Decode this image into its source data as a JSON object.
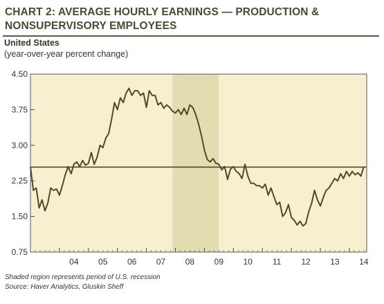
{
  "title_line1": "CHART 2: AVERAGE HOURLY EARNINGS — PRODUCTION &",
  "title_line2": "NONSUPERVISORY EMPLOYEES",
  "subtitle": "United States",
  "units": "(year-over-year percent change)",
  "footnotes": {
    "recession_note": "Shaded region represents period of U.S. recession",
    "source": "Source: Haver Analytics, Gluskin Sheff"
  },
  "colors": {
    "plot_background": "#f7efcf",
    "recession_shade": "#e3dcb0",
    "series_line": "#4b4b2b",
    "reference_line": "#4b4b2b"
  },
  "chart_data": {
    "type": "line",
    "ylim": [
      0.75,
      4.5
    ],
    "yticks": [
      "4.50",
      "3.75",
      "3.00",
      "2.25",
      "1.50",
      "0.75"
    ],
    "yticks_values": [
      4.5,
      3.75,
      3.0,
      2.25,
      1.5,
      0.75
    ],
    "xlim": [
      2003.0,
      2014.6
    ],
    "xtick_labels": [
      "04",
      "05",
      "06",
      "07",
      "08",
      "09",
      "10",
      "11",
      "12",
      "13",
      "14"
    ],
    "xtick_centers": [
      2004.5,
      2005.5,
      2006.5,
      2007.5,
      2008.5,
      2009.5,
      2010.5,
      2011.5,
      2012.5,
      2013.5,
      2014.5
    ],
    "reference_line": 2.54,
    "recession": [
      2007.9,
      2009.5
    ],
    "series": [
      {
        "x": [
          2003.0,
          2003.1,
          2003.2,
          2003.3,
          2003.4,
          2003.5,
          2003.6,
          2003.7,
          2003.8,
          2003.9,
          2004.0,
          2004.1,
          2004.2,
          2004.3,
          2004.4,
          2004.5,
          2004.6,
          2004.7,
          2004.8,
          2004.9,
          2005.0,
          2005.1,
          2005.2,
          2005.3,
          2005.4,
          2005.5,
          2005.6,
          2005.7,
          2005.8,
          2005.9,
          2006.0,
          2006.1,
          2006.2,
          2006.3,
          2006.4,
          2006.5,
          2006.6,
          2006.7,
          2006.8,
          2006.9,
          2007.0,
          2007.1,
          2007.2,
          2007.3,
          2007.4,
          2007.5,
          2007.6,
          2007.7,
          2007.8,
          2007.9,
          2008.0,
          2008.1,
          2008.2,
          2008.3,
          2008.4,
          2008.5,
          2008.6,
          2008.7,
          2008.8,
          2008.9,
          2009.0,
          2009.1,
          2009.2,
          2009.3,
          2009.4,
          2009.5,
          2009.6,
          2009.7,
          2009.8,
          2009.9,
          2010.0,
          2010.1,
          2010.2,
          2010.3,
          2010.4,
          2010.5,
          2010.6,
          2010.7,
          2010.8,
          2010.9,
          2011.0,
          2011.1,
          2011.2,
          2011.3,
          2011.4,
          2011.5,
          2011.6,
          2011.7,
          2011.8,
          2011.9,
          2012.0,
          2012.1,
          2012.2,
          2012.3,
          2012.4,
          2012.5,
          2012.6,
          2012.7,
          2012.8,
          2012.9,
          2013.0,
          2013.1,
          2013.2,
          2013.3,
          2013.4,
          2013.5,
          2013.6,
          2013.7,
          2013.8,
          2013.9,
          2014.0,
          2014.1,
          2014.2,
          2014.3,
          2014.4,
          2014.5
        ],
        "values": [
          2.55,
          2.05,
          2.1,
          1.68,
          1.85,
          1.62,
          1.78,
          2.1,
          2.05,
          2.08,
          1.95,
          2.15,
          2.38,
          2.55,
          2.4,
          2.6,
          2.65,
          2.55,
          2.68,
          2.58,
          2.62,
          2.85,
          2.6,
          2.75,
          3.0,
          2.95,
          3.15,
          3.25,
          3.55,
          3.9,
          3.75,
          4.0,
          3.9,
          4.1,
          4.2,
          4.05,
          4.15,
          4.15,
          4.05,
          4.1,
          3.8,
          4.15,
          4.05,
          4.05,
          3.85,
          3.9,
          3.78,
          3.85,
          3.8,
          3.72,
          3.68,
          3.75,
          3.65,
          3.78,
          3.65,
          3.85,
          3.8,
          3.65,
          3.45,
          3.2,
          2.9,
          2.7,
          2.65,
          2.72,
          2.62,
          2.6,
          2.48,
          2.55,
          2.28,
          2.5,
          2.55,
          2.45,
          2.4,
          2.3,
          2.6,
          2.35,
          2.2,
          2.2,
          2.15,
          2.15,
          2.1,
          2.18,
          1.95,
          2.1,
          1.92,
          1.75,
          1.8,
          1.5,
          1.58,
          1.75,
          1.48,
          1.42,
          1.32,
          1.4,
          1.3,
          1.35,
          1.6,
          1.78,
          2.05,
          1.85,
          1.72,
          1.9,
          2.05,
          2.1,
          2.2,
          2.3,
          2.25,
          2.4,
          2.3,
          2.45,
          2.35,
          2.45,
          2.38,
          2.42,
          2.35,
          2.55
        ]
      }
    ]
  }
}
